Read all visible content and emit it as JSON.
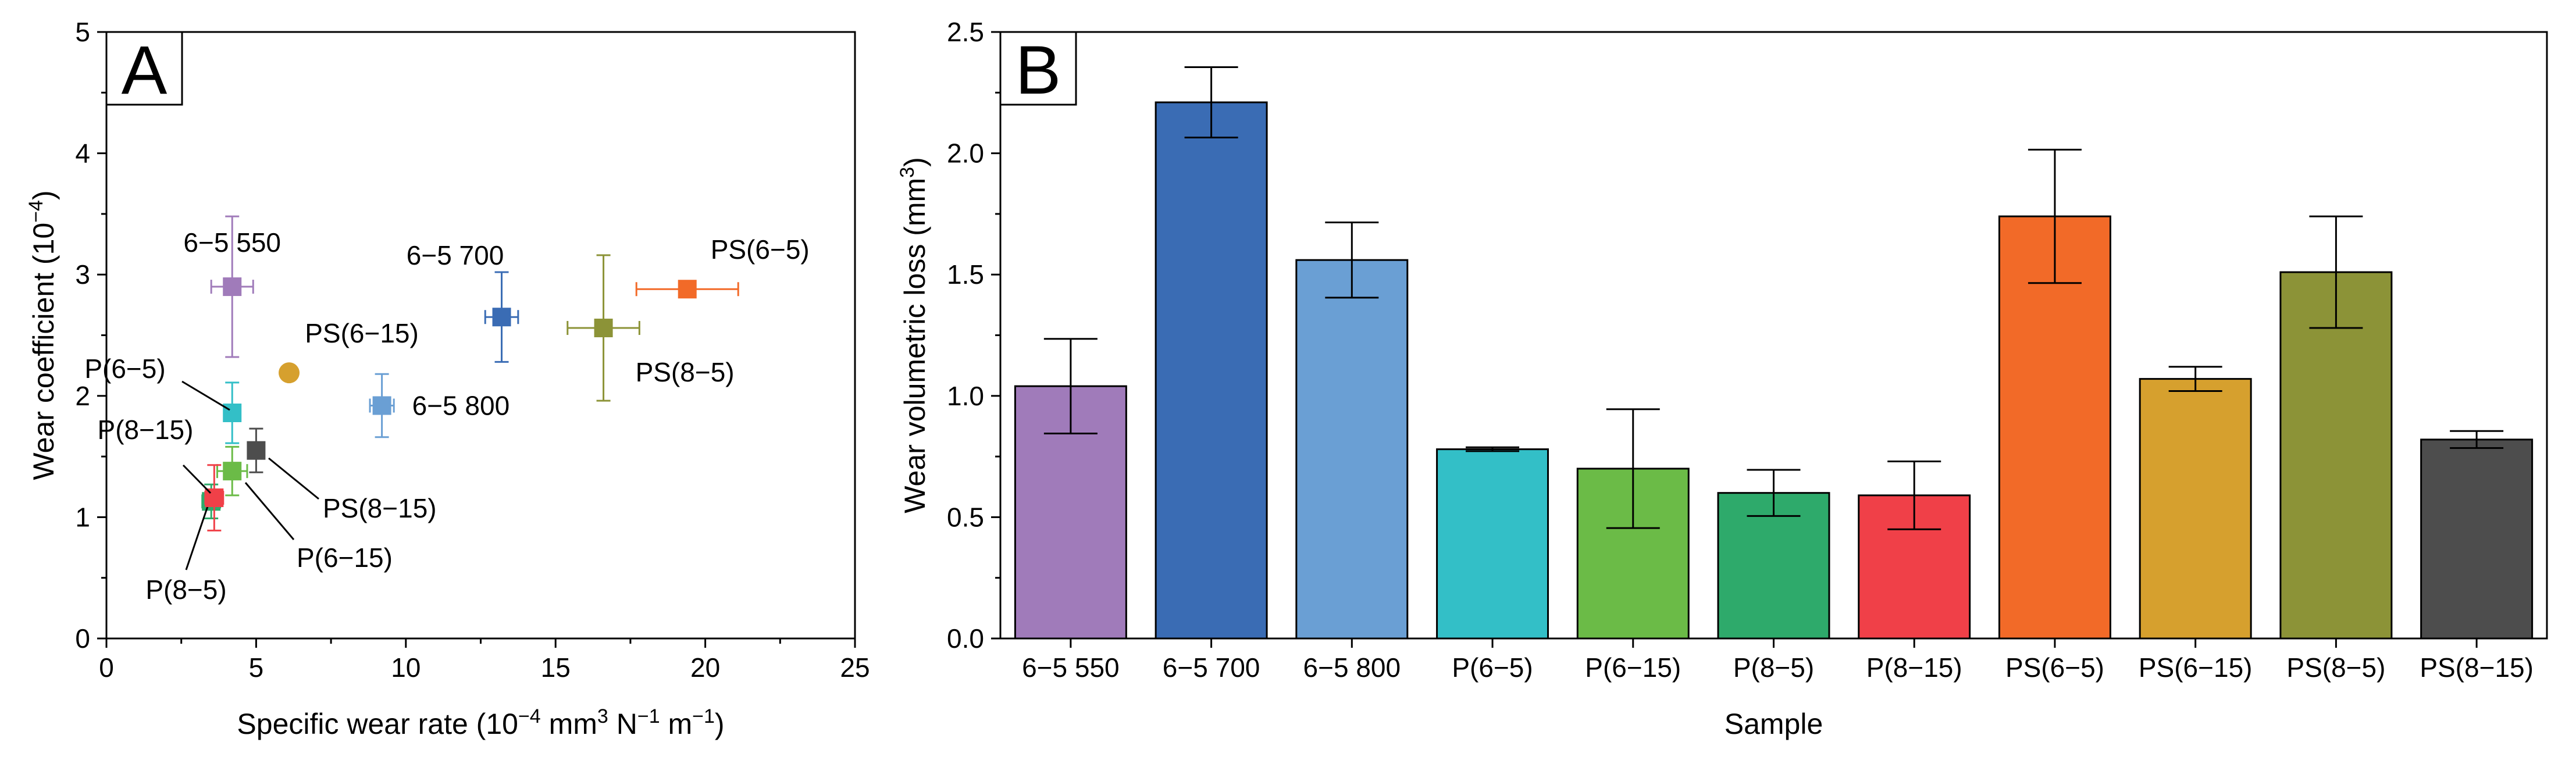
{
  "chart_data": [
    {
      "panel": "A",
      "type": "scatter",
      "xlabel_parts": [
        "Specific wear rate (10",
        "−4",
        " mm",
        "3",
        " N",
        "−1",
        " m",
        "−1",
        ")"
      ],
      "ylabel_parts": [
        "Wear coefficient (10",
        "−4",
        ")"
      ],
      "xlim": [
        0,
        25
      ],
      "ylim": [
        0,
        5
      ],
      "xticks": [
        0,
        5,
        10,
        15,
        20,
        25
      ],
      "yticks": [
        0,
        1,
        2,
        3,
        4,
        5
      ],
      "points": [
        {
          "name": "6−5 550",
          "x": 4.2,
          "y": 2.9,
          "xerr": 0.7,
          "yerr": 0.58,
          "color": "#a07bba",
          "marker": "square",
          "label_pos": "above"
        },
        {
          "name": "6−5 700",
          "x": 13.2,
          "y": 2.65,
          "xerr": 0.55,
          "yerr": 0.37,
          "color": "#3a6cb4",
          "marker": "square",
          "label_pos": "above-left"
        },
        {
          "name": "6−5 800",
          "x": 9.2,
          "y": 1.92,
          "xerr": 0.4,
          "yerr": 0.26,
          "color": "#6a9fd4",
          "marker": "square",
          "label_pos": "right"
        },
        {
          "name": "P(6−5)",
          "x": 4.2,
          "y": 1.86,
          "xerr": 0.06,
          "yerr": 0.25,
          "color": "#33bfc7",
          "marker": "square",
          "label_pos": "leader-up-left"
        },
        {
          "name": "P(6−15)",
          "x": 4.2,
          "y": 1.38,
          "xerr": 0.5,
          "yerr": 0.2,
          "color": "#6bbb47",
          "marker": "square",
          "label_pos": "leader-down-right"
        },
        {
          "name": "P(8−5)",
          "x": 3.5,
          "y": 1.13,
          "xerr": 0.3,
          "yerr": 0.14,
          "color": "#2eaa6b",
          "marker": "square",
          "label_pos": "leader-down-left"
        },
        {
          "name": "P(8−15)",
          "x": 3.6,
          "y": 1.16,
          "xerr": 0.3,
          "yerr": 0.27,
          "color": "#f04048",
          "marker": "square",
          "label_pos": "leader-up-left"
        },
        {
          "name": "PS(6−5)",
          "x": 19.4,
          "y": 2.88,
          "xerr": 1.7,
          "yerr": 0.04,
          "color": "#f26a28",
          "marker": "square",
          "label_pos": "above-right"
        },
        {
          "name": "PS(6−15)",
          "x": 6.1,
          "y": 2.19,
          "xerr": 0.1,
          "yerr": 0.04,
          "color": "#d6a02e",
          "marker": "circle",
          "label_pos": "above-right"
        },
        {
          "name": "PS(8−5)",
          "x": 16.6,
          "y": 2.56,
          "xerr": 1.2,
          "yerr": 0.6,
          "color": "#8c9337",
          "marker": "square",
          "label_pos": "below-right"
        },
        {
          "name": "PS(8−15)",
          "x": 5.0,
          "y": 1.55,
          "xerr": 0.26,
          "yerr": 0.18,
          "color": "#4d4d4d",
          "marker": "square",
          "label_pos": "leader-down-right"
        }
      ]
    },
    {
      "panel": "B",
      "type": "bar",
      "xlabel": "Sample",
      "ylabel_parts": [
        "Wear volumetric loss (mm",
        "3",
        ")"
      ],
      "ylim": [
        0,
        2.5
      ],
      "yticks": [
        "0.0",
        "0.5",
        "1.0",
        "1.5",
        "2.0",
        "2.5"
      ],
      "categories": [
        "6−5 550",
        "6−5 700",
        "6−5 800",
        "P(6−5)",
        "P(6−15)",
        "P(8−5)",
        "P(8−15)",
        "PS(6−5)",
        "PS(6−15)",
        "PS(8−5)",
        "PS(8−15)"
      ],
      "values": [
        1.04,
        2.21,
        1.56,
        0.78,
        0.7,
        0.6,
        0.59,
        1.74,
        1.07,
        1.51,
        0.82
      ],
      "errors": [
        0.195,
        0.145,
        0.155,
        0.008,
        0.245,
        0.095,
        0.14,
        0.275,
        0.05,
        0.23,
        0.035
      ],
      "colors": [
        "#a07bba",
        "#3a6cb4",
        "#6a9fd4",
        "#33bfc7",
        "#6bbb47",
        "#2eaa6b",
        "#f04048",
        "#f26a28",
        "#d6a02e",
        "#8c9337",
        "#4d4d4d"
      ]
    }
  ]
}
